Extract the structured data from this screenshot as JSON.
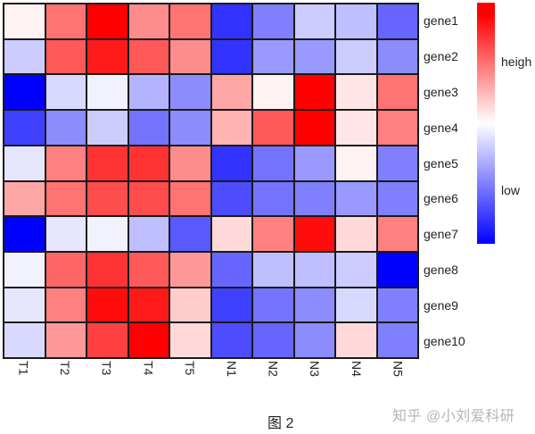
{
  "chart_data": {
    "type": "heatmap",
    "title": "",
    "caption": "图 2",
    "rows": [
      "gene1",
      "gene2",
      "gene3",
      "gene4",
      "gene5",
      "gene6",
      "gene7",
      "gene8",
      "gene9",
      "gene10"
    ],
    "columns": [
      "T1",
      "T2",
      "T3",
      "T4",
      "T5",
      "N1",
      "N2",
      "N3",
      "N4",
      "N5"
    ],
    "value_range": [
      -2,
      2
    ],
    "colormap": {
      "low": "#0000ff",
      "mid": "#ffffff",
      "high": "#ff0000"
    },
    "legend": {
      "high_label": "heigh",
      "low_label": "low",
      "position": "right"
    },
    "values": [
      [
        0.1,
        1.1,
        2.0,
        0.9,
        1.1,
        -1.6,
        -1.0,
        -0.4,
        -0.5,
        -1.2
      ],
      [
        -0.4,
        1.3,
        1.8,
        1.3,
        0.9,
        -1.6,
        -0.8,
        -0.8,
        -0.4,
        -0.9
      ],
      [
        -2.0,
        -0.3,
        -0.1,
        -0.6,
        -0.9,
        0.7,
        0.1,
        2.0,
        0.2,
        1.1
      ],
      [
        -1.5,
        -0.9,
        -0.4,
        -1.1,
        -0.9,
        0.6,
        1.3,
        2.0,
        0.2,
        1.0
      ],
      [
        -0.2,
        1.0,
        1.6,
        1.6,
        0.9,
        -1.6,
        -1.1,
        -0.8,
        0.1,
        -1.0
      ],
      [
        0.7,
        1.1,
        1.4,
        1.4,
        1.1,
        -1.4,
        -1.1,
        -1.0,
        -0.8,
        -1.0
      ],
      [
        -2.0,
        -0.2,
        -0.1,
        -0.5,
        -1.3,
        0.3,
        1.0,
        1.9,
        0.3,
        1.0
      ],
      [
        -0.1,
        1.2,
        1.6,
        1.3,
        0.8,
        -1.2,
        -0.5,
        -0.5,
        -0.4,
        -2.0
      ],
      [
        -0.2,
        1.0,
        1.9,
        1.8,
        0.4,
        -1.5,
        -1.1,
        -0.9,
        -0.3,
        -1.0
      ],
      [
        -0.3,
        0.8,
        1.5,
        2.0,
        0.3,
        -1.4,
        -1.2,
        -0.9,
        0.3,
        -1.0
      ]
    ]
  },
  "legend": {
    "high_label": "heigh",
    "low_label": "low"
  },
  "caption": "图 2",
  "watermark": "知乎 @小刘爱科研"
}
